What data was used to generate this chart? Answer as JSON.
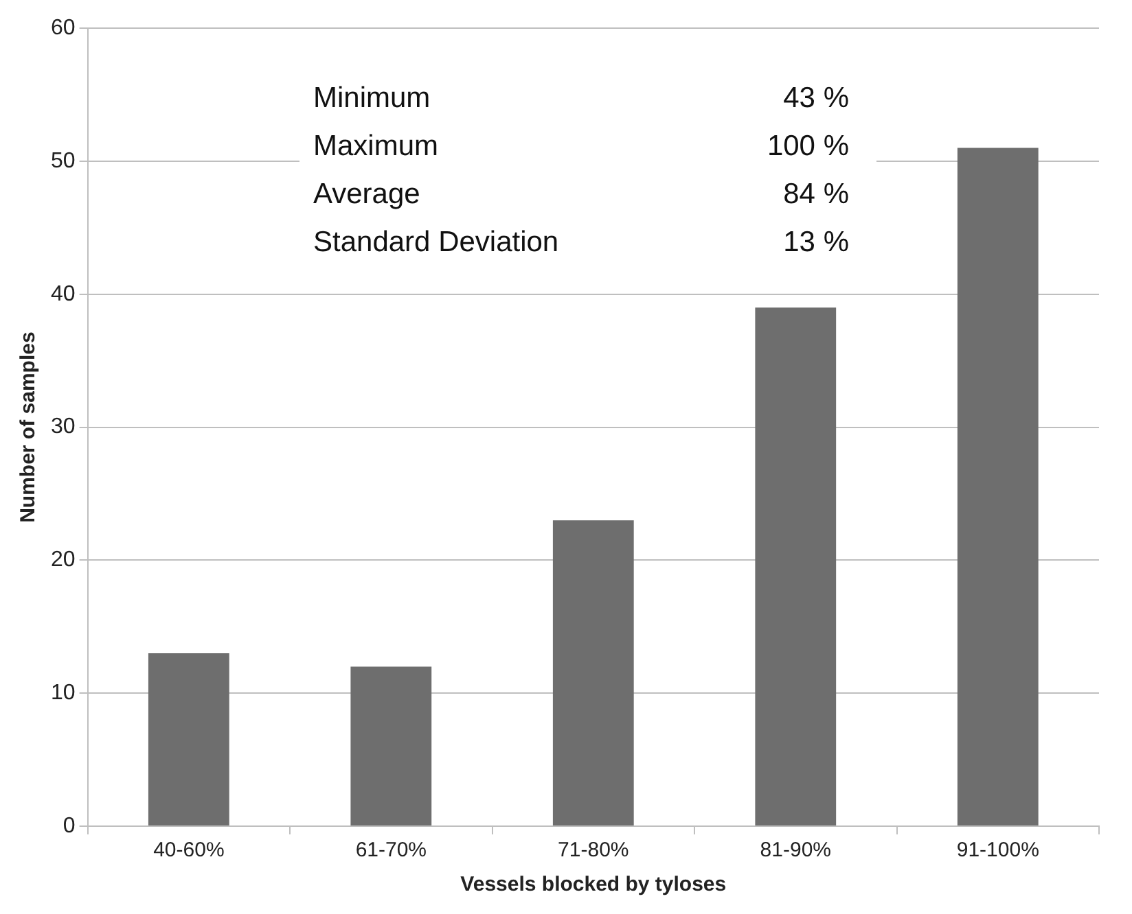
{
  "chart_data": {
    "type": "bar",
    "xlabel": "Vessels blocked by tyloses",
    "ylabel": "Number of samples",
    "categories": [
      "40-60%",
      "61-70%",
      "71-80%",
      "81-90%",
      "91-100%"
    ],
    "values": [
      13,
      12,
      23,
      39,
      51
    ],
    "color": "#6e6e6e",
    "ylim": [
      0,
      60
    ],
    "yticks": [
      0,
      10,
      20,
      30,
      40,
      50,
      60
    ],
    "grid": "y",
    "legend": false,
    "annotations": [
      "Minimum",
      "43 %",
      "Maximum",
      "100 %",
      "Average",
      "84 %",
      "Standard Deviation",
      "13 %"
    ]
  }
}
